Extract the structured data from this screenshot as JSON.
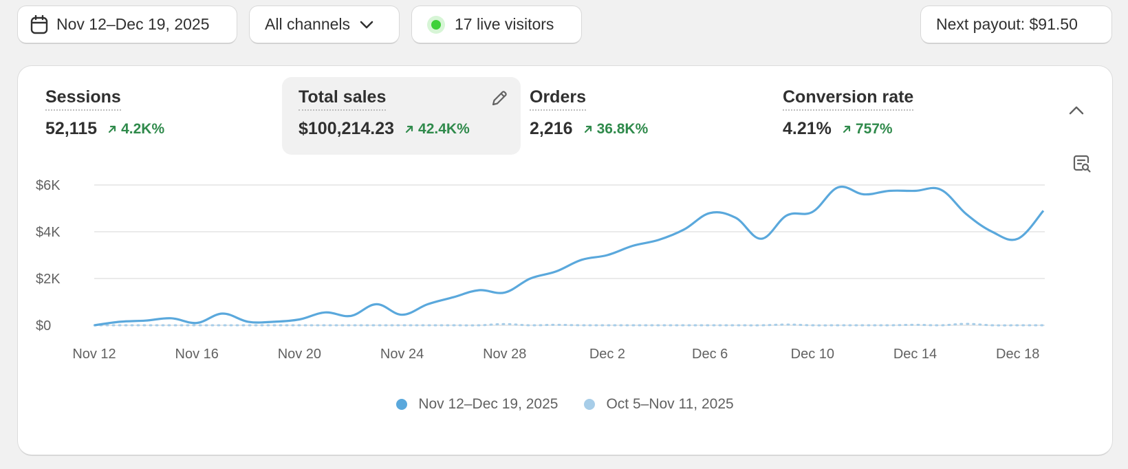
{
  "toolbar": {
    "date_range": "Nov 12–Dec 19, 2025",
    "channels": "All channels",
    "live_visitors": "17 live visitors",
    "payout": "Next payout: $91.50"
  },
  "metrics": [
    {
      "title": "Sessions",
      "value": "52,115",
      "change": "4.2K%"
    },
    {
      "title": "Total sales",
      "value": "$100,214.23",
      "change": "42.4K%"
    },
    {
      "title": "Orders",
      "value": "2,216",
      "change": "36.8K%"
    },
    {
      "title": "Conversion rate",
      "value": "4.21%",
      "change": "757%"
    }
  ],
  "icons": {
    "calendar": "calendar-icon",
    "chevron": "chevron-down-icon",
    "live": "live-dot-icon",
    "edit": "pencil-icon",
    "collapse": "chevron-up-icon",
    "insight": "data-search-icon",
    "change": "arrow-up-right-icon"
  },
  "colors": {
    "current": "#5aa8dc",
    "previous": "#a7cde8",
    "positive": "#2f8a4b",
    "live": "#3fd13a"
  },
  "chart_data": {
    "type": "line",
    "ylim": [
      0,
      6000
    ],
    "yticks": [
      "$0",
      "$2K",
      "$4K",
      "$6K"
    ],
    "ytick_values": [
      0,
      2000,
      4000,
      6000
    ],
    "x": [
      "Nov 12",
      "Nov 13",
      "Nov 14",
      "Nov 15",
      "Nov 16",
      "Nov 17",
      "Nov 18",
      "Nov 19",
      "Nov 20",
      "Nov 21",
      "Nov 22",
      "Nov 23",
      "Nov 24",
      "Nov 25",
      "Nov 26",
      "Nov 27",
      "Nov 28",
      "Nov 29",
      "Nov 30",
      "Dec 1",
      "Dec 2",
      "Dec 3",
      "Dec 4",
      "Dec 5",
      "Dec 6",
      "Dec 7",
      "Dec 8",
      "Dec 9",
      "Dec 10",
      "Dec 11",
      "Dec 12",
      "Dec 13",
      "Dec 14",
      "Dec 15",
      "Dec 16",
      "Dec 17",
      "Dec 18",
      "Dec 19"
    ],
    "xticks": [
      "Nov 12",
      "Nov 16",
      "Nov 20",
      "Nov 24",
      "Nov 28",
      "Dec 2",
      "Dec 6",
      "Dec 10",
      "Dec 14",
      "Dec 18"
    ],
    "xtick_index": [
      0,
      4,
      8,
      12,
      16,
      20,
      24,
      28,
      32,
      36
    ],
    "series": [
      {
        "name": "Nov 12–Dec 19, 2025",
        "values": [
          0,
          150,
          200,
          300,
          100,
          500,
          150,
          150,
          250,
          550,
          400,
          900,
          450,
          900,
          1200,
          1500,
          1400,
          2000,
          2300,
          2800,
          3000,
          3400,
          3650,
          4100,
          4800,
          4600,
          3700,
          4700,
          4850,
          5900,
          5600,
          5750,
          5750,
          5800,
          4750,
          4000,
          3700,
          4900
        ]
      },
      {
        "name": "Oct 5–Nov 11, 2025",
        "values": [
          0,
          0,
          0,
          0,
          0,
          0,
          0,
          0,
          0,
          0,
          0,
          0,
          0,
          0,
          0,
          0,
          50,
          0,
          20,
          0,
          0,
          0,
          0,
          0,
          0,
          0,
          0,
          30,
          0,
          0,
          0,
          0,
          20,
          0,
          60,
          0,
          0,
          0
        ]
      }
    ],
    "grid": true,
    "legend": "bottom"
  }
}
